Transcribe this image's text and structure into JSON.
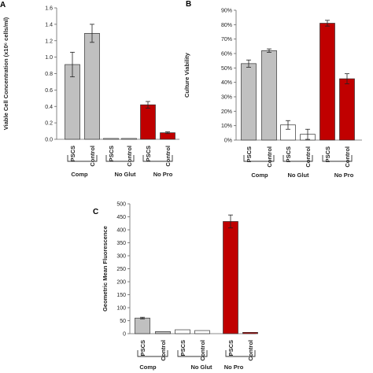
{
  "chart_data": [
    {
      "panel": "A",
      "type": "bar",
      "ylabel": "Viable Cell Concentration (x10⁶ cells/ml)",
      "ylim": [
        0,
        1.6
      ],
      "yticks": [
        "0.0",
        "0.2",
        "0.4",
        "0.6",
        "0.8",
        "1.0",
        "1.2",
        "1.4",
        "1.6"
      ],
      "tick_values": [
        0,
        0.2,
        0.4,
        0.6,
        0.8,
        1.0,
        1.2,
        1.4,
        1.6
      ],
      "categories": [
        "PSCS",
        "Control",
        "PSCS",
        "Control",
        "PSCS",
        "Control"
      ],
      "groups": [
        "Comp",
        "No Glut",
        "No Pro"
      ],
      "values": [
        0.91,
        1.29,
        0.01,
        0.01,
        0.42,
        0.08
      ],
      "errors": [
        0.15,
        0.11,
        0.0,
        0.0,
        0.04,
        0.01
      ],
      "bar_colors": [
        "#c0c0c0",
        "#c0c0c0",
        "#ffffff",
        "#ffffff",
        "#c00000",
        "#c00000"
      ],
      "grid": false
    },
    {
      "panel": "B",
      "type": "bar",
      "ylabel": "Culture Viability",
      "ylim": [
        0,
        90
      ],
      "yticks": [
        "0%",
        "10%",
        "20%",
        "30%",
        "40%",
        "50%",
        "60%",
        "70%",
        "80%",
        "90%"
      ],
      "tick_values": [
        0,
        10,
        20,
        30,
        40,
        50,
        60,
        70,
        80,
        90
      ],
      "categories": [
        "PSCS",
        "Control",
        "PSCS",
        "Control",
        "PSCS",
        "Control"
      ],
      "groups": [
        "Comp",
        "No Glut",
        "No Pro"
      ],
      "values": [
        53,
        62,
        10.5,
        4,
        81,
        42.5
      ],
      "errors": [
        2.5,
        1.2,
        3,
        3.5,
        2,
        3.5
      ],
      "bar_colors": [
        "#c0c0c0",
        "#c0c0c0",
        "#ffffff",
        "#ffffff",
        "#c00000",
        "#c00000"
      ],
      "grid": false
    },
    {
      "panel": "C",
      "type": "bar",
      "ylabel": "Geometric Mean Fluorescence",
      "ylim": [
        0,
        500
      ],
      "yticks": [
        "0",
        "50",
        "100",
        "150",
        "200",
        "250",
        "300",
        "350",
        "400",
        "450",
        "500"
      ],
      "tick_values": [
        0,
        50,
        100,
        150,
        200,
        250,
        300,
        350,
        400,
        450,
        500
      ],
      "categories": [
        "PSCS",
        "Control",
        "PSCS",
        "Control",
        "PSCS",
        "Control"
      ],
      "groups": [
        "Comp",
        "No Glut",
        "No Pro"
      ],
      "values": [
        60,
        8,
        15,
        12,
        432,
        5
      ],
      "errors": [
        3,
        0,
        0,
        0,
        25,
        0
      ],
      "bar_colors": [
        "#c0c0c0",
        "#c0c0c0",
        "#ffffff",
        "#ffffff",
        "#c00000",
        "#c00000"
      ],
      "grid": false
    }
  ]
}
